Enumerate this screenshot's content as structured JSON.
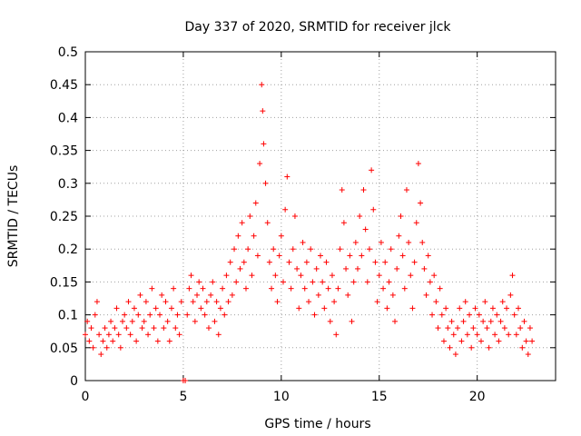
{
  "chart_data": {
    "type": "scatter",
    "title": "Day 337 of 2020, SRMTID for receiver jlck",
    "xlabel": "GPS time / hours",
    "ylabel": "SRMTID / TECUs",
    "xlim": [
      0,
      24
    ],
    "ylim": [
      0,
      0.5
    ],
    "xticks": [
      0,
      5,
      10,
      15,
      20
    ],
    "xtick_labels": [
      "0",
      "5",
      "10",
      "15",
      "20"
    ],
    "yticks": [
      0,
      0.05,
      0.1,
      0.15,
      0.2,
      0.25,
      0.3,
      0.35,
      0.4,
      0.45,
      0.5
    ],
    "ytick_labels": [
      "0",
      "0.05",
      "0.1",
      "0.15",
      "0.2",
      "0.25",
      "0.3",
      "0.35",
      "0.4",
      "0.45",
      "0.5"
    ],
    "grid": true,
    "marker": "+",
    "color": "#ff0000",
    "series": [
      {
        "name": "SRMTID",
        "points": [
          [
            0.0,
            0.07
          ],
          [
            0.1,
            0.09
          ],
          [
            0.2,
            0.06
          ],
          [
            0.3,
            0.08
          ],
          [
            0.4,
            0.05
          ],
          [
            0.5,
            0.1
          ],
          [
            0.6,
            0.12
          ],
          [
            0.7,
            0.07
          ],
          [
            0.8,
            0.04
          ],
          [
            0.9,
            0.06
          ],
          [
            1.0,
            0.08
          ],
          [
            1.1,
            0.05
          ],
          [
            1.2,
            0.07
          ],
          [
            1.3,
            0.09
          ],
          [
            1.4,
            0.06
          ],
          [
            1.5,
            0.08
          ],
          [
            1.6,
            0.11
          ],
          [
            1.7,
            0.07
          ],
          [
            1.8,
            0.05
          ],
          [
            1.9,
            0.09
          ],
          [
            2.0,
            0.1
          ],
          [
            2.1,
            0.08
          ],
          [
            2.2,
            0.12
          ],
          [
            2.3,
            0.07
          ],
          [
            2.4,
            0.09
          ],
          [
            2.5,
            0.11
          ],
          [
            2.6,
            0.06
          ],
          [
            2.7,
            0.1
          ],
          [
            2.8,
            0.13
          ],
          [
            2.9,
            0.08
          ],
          [
            3.0,
            0.09
          ],
          [
            3.1,
            0.12
          ],
          [
            3.2,
            0.07
          ],
          [
            3.3,
            0.1
          ],
          [
            3.4,
            0.14
          ],
          [
            3.5,
            0.08
          ],
          [
            3.6,
            0.11
          ],
          [
            3.7,
            0.06
          ],
          [
            3.8,
            0.1
          ],
          [
            3.9,
            0.13
          ],
          [
            4.0,
            0.08
          ],
          [
            4.1,
            0.12
          ],
          [
            4.2,
            0.09
          ],
          [
            4.3,
            0.06
          ],
          [
            4.4,
            0.11
          ],
          [
            4.5,
            0.14
          ],
          [
            4.6,
            0.08
          ],
          [
            4.7,
            0.1
          ],
          [
            4.8,
            0.07
          ],
          [
            4.9,
            0.12
          ],
          [
            5.0,
            0.0
          ],
          [
            5.1,
            0.0
          ],
          [
            5.2,
            0.1
          ],
          [
            5.3,
            0.14
          ],
          [
            5.4,
            0.16
          ],
          [
            5.5,
            0.12
          ],
          [
            5.6,
            0.09
          ],
          [
            5.7,
            0.13
          ],
          [
            5.8,
            0.15
          ],
          [
            5.9,
            0.11
          ],
          [
            6.0,
            0.14
          ],
          [
            6.1,
            0.1
          ],
          [
            6.2,
            0.12
          ],
          [
            6.3,
            0.08
          ],
          [
            6.4,
            0.13
          ],
          [
            6.5,
            0.15
          ],
          [
            6.6,
            0.09
          ],
          [
            6.7,
            0.12
          ],
          [
            6.8,
            0.07
          ],
          [
            6.9,
            0.11
          ],
          [
            7.0,
            0.14
          ],
          [
            7.1,
            0.1
          ],
          [
            7.2,
            0.16
          ],
          [
            7.3,
            0.12
          ],
          [
            7.4,
            0.18
          ],
          [
            7.5,
            0.13
          ],
          [
            7.6,
            0.2
          ],
          [
            7.7,
            0.15
          ],
          [
            7.8,
            0.22
          ],
          [
            7.9,
            0.17
          ],
          [
            8.0,
            0.24
          ],
          [
            8.1,
            0.18
          ],
          [
            8.2,
            0.14
          ],
          [
            8.3,
            0.2
          ],
          [
            8.4,
            0.25
          ],
          [
            8.5,
            0.16
          ],
          [
            8.6,
            0.22
          ],
          [
            8.7,
            0.27
          ],
          [
            8.8,
            0.19
          ],
          [
            8.9,
            0.33
          ],
          [
            9.0,
            0.45
          ],
          [
            9.05,
            0.41
          ],
          [
            9.1,
            0.36
          ],
          [
            9.2,
            0.3
          ],
          [
            9.3,
            0.24
          ],
          [
            9.4,
            0.18
          ],
          [
            9.5,
            0.14
          ],
          [
            9.6,
            0.2
          ],
          [
            9.7,
            0.16
          ],
          [
            9.8,
            0.12
          ],
          [
            9.9,
            0.19
          ],
          [
            10.0,
            0.22
          ],
          [
            10.1,
            0.15
          ],
          [
            10.2,
            0.26
          ],
          [
            10.3,
            0.31
          ],
          [
            10.4,
            0.18
          ],
          [
            10.5,
            0.14
          ],
          [
            10.6,
            0.2
          ],
          [
            10.7,
            0.25
          ],
          [
            10.8,
            0.17
          ],
          [
            10.9,
            0.11
          ],
          [
            11.0,
            0.16
          ],
          [
            11.1,
            0.21
          ],
          [
            11.2,
            0.14
          ],
          [
            11.3,
            0.18
          ],
          [
            11.4,
            0.12
          ],
          [
            11.5,
            0.2
          ],
          [
            11.6,
            0.15
          ],
          [
            11.7,
            0.1
          ],
          [
            11.8,
            0.17
          ],
          [
            11.9,
            0.13
          ],
          [
            12.0,
            0.19
          ],
          [
            12.1,
            0.15
          ],
          [
            12.2,
            0.11
          ],
          [
            12.3,
            0.18
          ],
          [
            12.4,
            0.14
          ],
          [
            12.5,
            0.09
          ],
          [
            12.6,
            0.16
          ],
          [
            12.7,
            0.12
          ],
          [
            12.8,
            0.07
          ],
          [
            12.9,
            0.14
          ],
          [
            13.0,
            0.2
          ],
          [
            13.1,
            0.29
          ],
          [
            13.2,
            0.24
          ],
          [
            13.3,
            0.17
          ],
          [
            13.4,
            0.13
          ],
          [
            13.5,
            0.19
          ],
          [
            13.6,
            0.09
          ],
          [
            13.7,
            0.15
          ],
          [
            13.8,
            0.21
          ],
          [
            13.9,
            0.17
          ],
          [
            14.0,
            0.25
          ],
          [
            14.1,
            0.19
          ],
          [
            14.2,
            0.29
          ],
          [
            14.3,
            0.23
          ],
          [
            14.4,
            0.15
          ],
          [
            14.5,
            0.2
          ],
          [
            14.6,
            0.32
          ],
          [
            14.7,
            0.26
          ],
          [
            14.8,
            0.18
          ],
          [
            14.9,
            0.12
          ],
          [
            15.0,
            0.16
          ],
          [
            15.1,
            0.21
          ],
          [
            15.2,
            0.14
          ],
          [
            15.3,
            0.18
          ],
          [
            15.4,
            0.11
          ],
          [
            15.5,
            0.15
          ],
          [
            15.6,
            0.2
          ],
          [
            15.7,
            0.13
          ],
          [
            15.8,
            0.09
          ],
          [
            15.9,
            0.17
          ],
          [
            16.0,
            0.22
          ],
          [
            16.1,
            0.25
          ],
          [
            16.2,
            0.19
          ],
          [
            16.3,
            0.14
          ],
          [
            16.4,
            0.29
          ],
          [
            16.5,
            0.21
          ],
          [
            16.6,
            0.16
          ],
          [
            16.7,
            0.11
          ],
          [
            16.8,
            0.18
          ],
          [
            16.9,
            0.24
          ],
          [
            17.0,
            0.33
          ],
          [
            17.1,
            0.27
          ],
          [
            17.2,
            0.21
          ],
          [
            17.3,
            0.17
          ],
          [
            17.4,
            0.13
          ],
          [
            17.5,
            0.19
          ],
          [
            17.6,
            0.15
          ],
          [
            17.7,
            0.1
          ],
          [
            17.8,
            0.16
          ],
          [
            17.9,
            0.12
          ],
          [
            18.0,
            0.08
          ],
          [
            18.1,
            0.14
          ],
          [
            18.2,
            0.1
          ],
          [
            18.3,
            0.06
          ],
          [
            18.4,
            0.11
          ],
          [
            18.5,
            0.08
          ],
          [
            18.6,
            0.05
          ],
          [
            18.7,
            0.09
          ],
          [
            18.8,
            0.07
          ],
          [
            18.9,
            0.04
          ],
          [
            19.0,
            0.08
          ],
          [
            19.1,
            0.11
          ],
          [
            19.2,
            0.06
          ],
          [
            19.3,
            0.09
          ],
          [
            19.4,
            0.12
          ],
          [
            19.5,
            0.07
          ],
          [
            19.6,
            0.1
          ],
          [
            19.7,
            0.05
          ],
          [
            19.8,
            0.08
          ],
          [
            19.9,
            0.11
          ],
          [
            20.0,
            0.07
          ],
          [
            20.1,
            0.1
          ],
          [
            20.2,
            0.06
          ],
          [
            20.3,
            0.09
          ],
          [
            20.4,
            0.12
          ],
          [
            20.5,
            0.08
          ],
          [
            20.6,
            0.05
          ],
          [
            20.7,
            0.09
          ],
          [
            20.8,
            0.11
          ],
          [
            20.9,
            0.07
          ],
          [
            21.0,
            0.1
          ],
          [
            21.1,
            0.06
          ],
          [
            21.2,
            0.09
          ],
          [
            21.3,
            0.12
          ],
          [
            21.4,
            0.08
          ],
          [
            21.5,
            0.11
          ],
          [
            21.6,
            0.07
          ],
          [
            21.7,
            0.13
          ],
          [
            21.8,
            0.16
          ],
          [
            21.9,
            0.1
          ],
          [
            22.0,
            0.07
          ],
          [
            22.1,
            0.11
          ],
          [
            22.2,
            0.08
          ],
          [
            22.3,
            0.05
          ],
          [
            22.4,
            0.09
          ],
          [
            22.5,
            0.06
          ],
          [
            22.6,
            0.04
          ],
          [
            22.7,
            0.08
          ],
          [
            22.8,
            0.06
          ]
        ]
      }
    ]
  }
}
